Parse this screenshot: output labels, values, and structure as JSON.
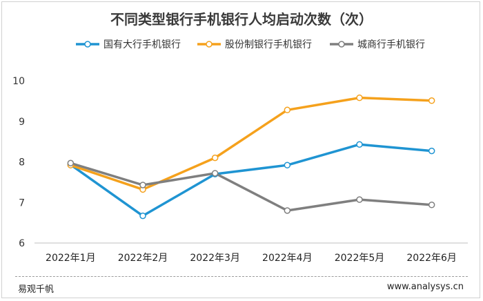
{
  "chart_data": {
    "type": "line",
    "title": "不同类型银行手机银行人均启动次数（次）",
    "categories": [
      "2022年1月",
      "2022年2月",
      "2022年3月",
      "2022年4月",
      "2022年5月",
      "2022年6月"
    ],
    "ylim": [
      6,
      10
    ],
    "yticks": [
      6,
      7,
      8,
      9,
      10
    ],
    "grid": false,
    "legend_position": "top",
    "series": [
      {
        "name": "国有大行手机银行",
        "color": "#1f94d2",
        "values": [
          7.93,
          6.67,
          7.7,
          7.92,
          8.43,
          8.27
        ]
      },
      {
        "name": "股份制银行手机银行",
        "color": "#f5a11c",
        "values": [
          7.92,
          7.32,
          8.1,
          9.28,
          9.58,
          9.51
        ]
      },
      {
        "name": "城商行手机银行",
        "color": "#7f7f7f",
        "values": [
          7.97,
          7.43,
          7.72,
          6.8,
          7.07,
          6.94
        ]
      }
    ]
  },
  "footer": {
    "source": "易观千帆",
    "website": "www.analysys.cn"
  }
}
